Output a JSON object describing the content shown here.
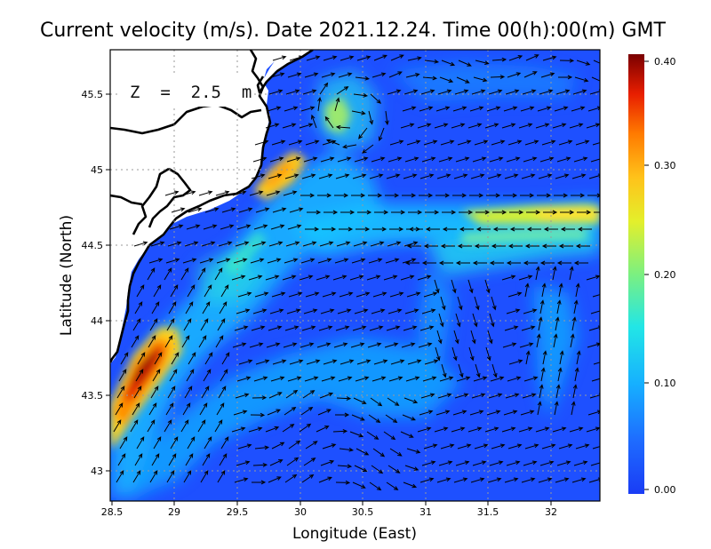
{
  "title": "Current velocity (m/s). Date 2021.12.24. Time 00(h):00(m) GMT",
  "xlabel": "Longitude (East)",
  "ylabel": "Latitude (North)",
  "depth_label": "Z  =  2.5  m",
  "x_ticks": [
    "28.5",
    "29",
    "29.5",
    "30",
    "30.5",
    "31",
    "31.5",
    "32"
  ],
  "y_ticks": [
    "43",
    "43.5",
    "44",
    "44.5",
    "45",
    "45.5"
  ],
  "colorbar": {
    "ticks": [
      "0.40",
      "0.30",
      "0.20",
      "0.10",
      "0.00"
    ],
    "colors": [
      "#0a1f9a",
      "#1e4fff",
      "#1f86ff",
      "#13c6ff",
      "#22f0d8",
      "#6ff08a",
      "#d7f02e",
      "#ffd11a",
      "#ff8a00",
      "#f22a00",
      "#b80000",
      "#780000"
    ]
  },
  "colors": {
    "land": "#ffffff",
    "coast": "#000000",
    "arrow": "#000000",
    "grid": "#9a9a9a",
    "sea_base": "#1e50ff"
  },
  "chart_data": {
    "type": "heatmap",
    "title": "Current velocity (m/s). Date 2021.12.24. Time 00(h):00(m) GMT",
    "xlabel": "Longitude (East)",
    "ylabel": "Latitude (North)",
    "xlim": [
      28.5,
      32.4
    ],
    "ylim": [
      42.8,
      45.8
    ],
    "colorbar_range": [
      0.0,
      0.4
    ],
    "grid": true,
    "depth_m": 2.5,
    "high_velocity_zones": [
      {
        "lon": 28.7,
        "lat": 43.7,
        "speed": 0.4
      },
      {
        "lon": 29.8,
        "lat": 44.9,
        "speed": 0.3
      },
      {
        "lon": 32.0,
        "lat": 44.75,
        "speed": 0.25
      },
      {
        "lon": 30.3,
        "lat": 45.3,
        "speed": 0.2
      }
    ]
  }
}
